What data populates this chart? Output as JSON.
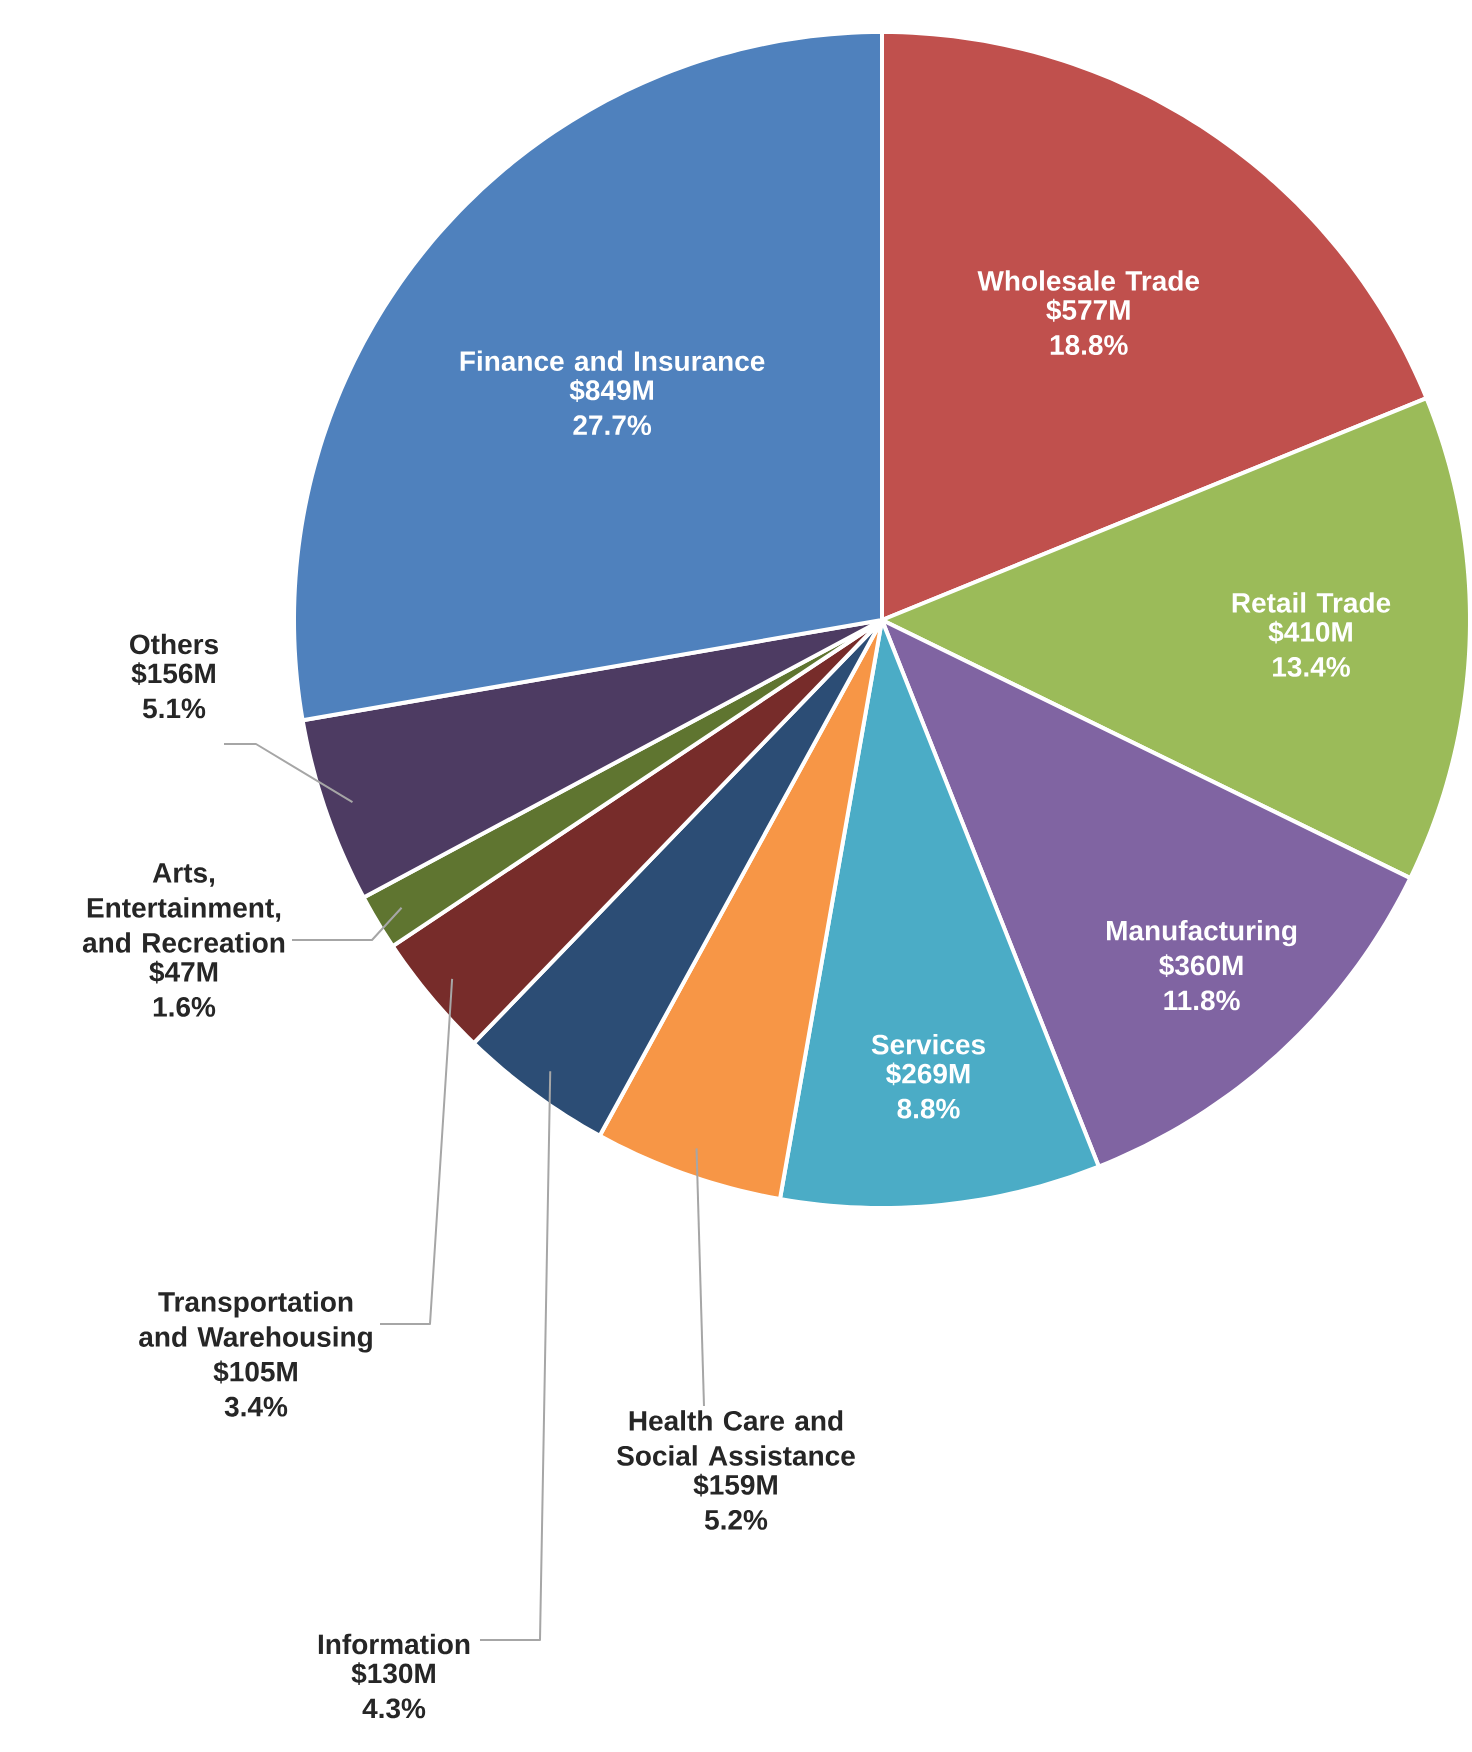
{
  "chart_data": {
    "type": "pie",
    "categories": [
      "Wholesale Trade",
      "Retail Trade",
      "Manufacturing",
      "Services",
      "Health Care and Social Assistance",
      "Information",
      "Transportation and Warehousing",
      "Arts, Entertainment, and Recreation",
      "Others",
      "Finance and Insurance"
    ],
    "values": [
      577000000,
      410000000,
      360000000,
      269000000,
      159000000,
      130000000,
      105000000,
      47000000,
      156000000,
      849000000
    ],
    "colors": [
      "#c0504d",
      "#9bbb59",
      "#8064a2",
      "#4bacc6",
      "#f79646",
      "#2c4d75",
      "#772c2a",
      "#5f7530",
      "#4d3b62",
      "#4f81bd"
    ],
    "value_labels": [
      "$577M 18.8%",
      "$410M 13.4%",
      "$360M 11.8%",
      "$269M 8.8%",
      "$159M 5.2%",
      "$130M 4.3%",
      "$105M 3.4%",
      "$47M 1.6%",
      "$156M 5.1%",
      "$849M 27.7%"
    ]
  }
}
